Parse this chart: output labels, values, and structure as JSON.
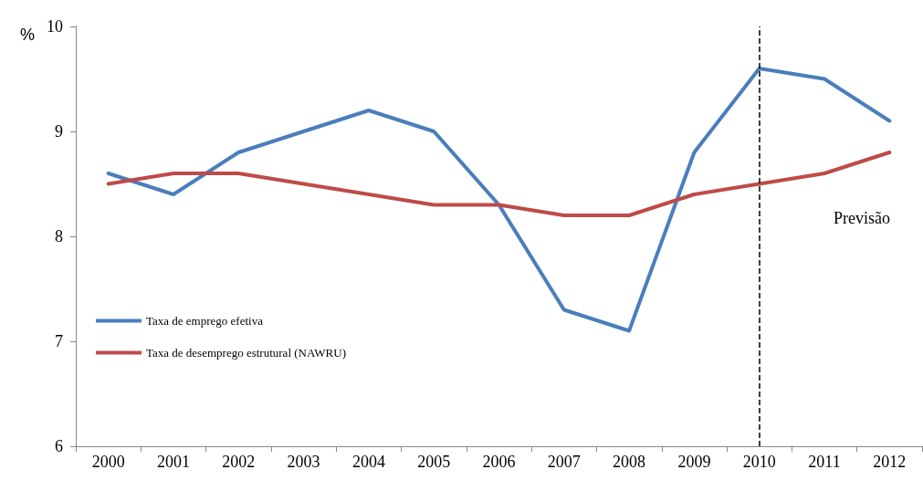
{
  "chart_data": {
    "type": "line",
    "ylabel": "%",
    "categories": [
      "2000",
      "2001",
      "2002",
      "2003",
      "2004",
      "2005",
      "2006",
      "2007",
      "2008",
      "2009",
      "2010",
      "2011",
      "2012"
    ],
    "series": [
      {
        "name": "Taxa de emprego efetiva",
        "color": "#4a7ebb",
        "values": [
          8.6,
          8.4,
          8.8,
          9.0,
          9.2,
          9.0,
          8.3,
          7.3,
          7.1,
          8.8,
          9.6,
          9.5,
          9.1
        ]
      },
      {
        "name": "Taxa de desemprego estrutural (NAWRU)",
        "color": "#be4b48",
        "values": [
          8.5,
          8.6,
          8.6,
          8.5,
          8.4,
          8.3,
          8.3,
          8.2,
          8.2,
          8.4,
          8.5,
          8.6,
          8.8
        ]
      }
    ],
    "ylim": [
      6,
      10
    ],
    "yticks": [
      6,
      7,
      8,
      9,
      10
    ],
    "grid": false,
    "legend": "left",
    "marker": "none",
    "line_style": "solid",
    "ref_lines": [
      {
        "axis": "x",
        "value": "2010",
        "color": "#000000",
        "line_style": "dashed"
      }
    ],
    "annotations": [
      "Previsão"
    ]
  }
}
